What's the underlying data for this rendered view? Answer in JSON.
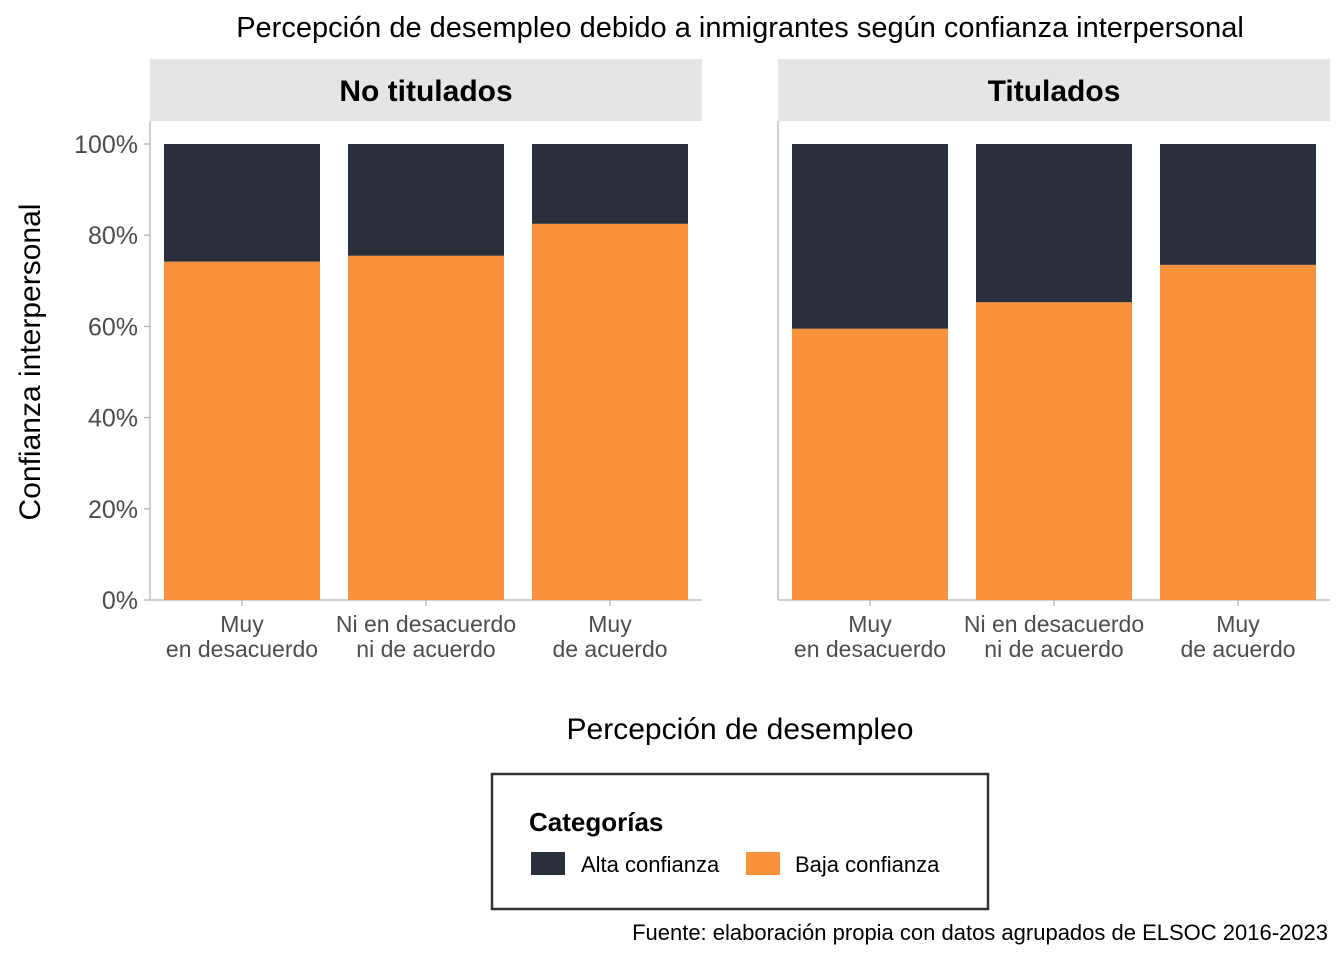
{
  "chart_data": {
    "type": "bar",
    "stacked": true,
    "title": "Percepción de desempleo debido a inmigrantes según confianza interpersonal",
    "xlabel": "Percepción de desempleo",
    "ylabel": "Confianza interpersonal",
    "ylim": [
      0,
      100
    ],
    "y_ticks": [
      "0%",
      "20%",
      "40%",
      "60%",
      "80%",
      "100%"
    ],
    "categories": [
      [
        "Muy",
        "en desacuerdo"
      ],
      [
        "Ni en desacuerdo",
        "ni de acuerdo"
      ],
      [
        "Muy",
        "de acuerdo"
      ]
    ],
    "panels": [
      {
        "label": "No titulados",
        "series": [
          {
            "name": "Baja confianza",
            "values": [
              74.2,
              75.5,
              82.5
            ]
          },
          {
            "name": "Alta confianza",
            "values": [
              25.8,
              24.5,
              17.5
            ]
          }
        ]
      },
      {
        "label": "Titulados",
        "series": [
          {
            "name": "Baja confianza",
            "values": [
              59.5,
              65.3,
              73.5
            ]
          },
          {
            "name": "Alta confianza",
            "values": [
              40.5,
              34.7,
              26.5
            ]
          }
        ]
      }
    ],
    "legend": {
      "title": "Categorías",
      "position": "bottom",
      "items": [
        {
          "name": "Alta confianza",
          "color": "#2b2f3b"
        },
        {
          "name": "Baja confianza",
          "color": "#f8923d"
        }
      ]
    },
    "caption": "Fuente: elaboración propia con datos agrupados de ELSOC 2016-2023",
    "grid": false
  }
}
